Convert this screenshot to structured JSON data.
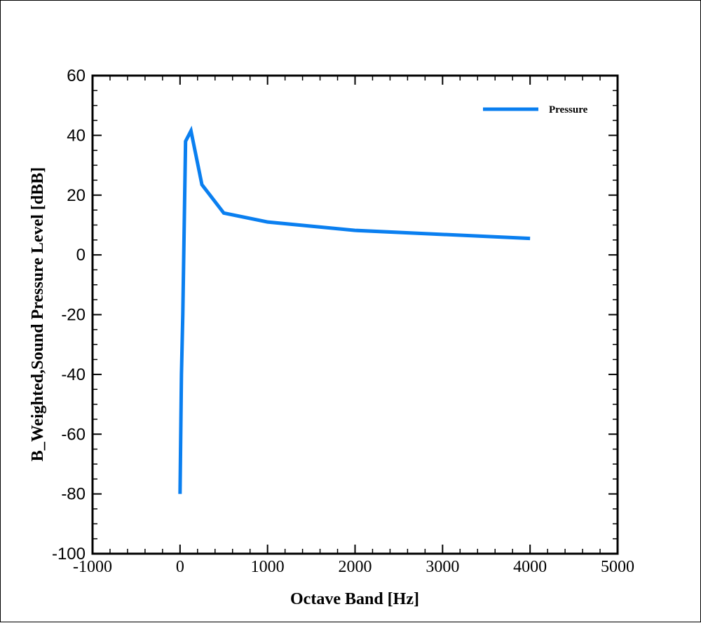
{
  "chart_data": {
    "type": "line",
    "xlabel": "Octave Band [Hz]",
    "ylabel": "B_Weighted,Sound Pressure Level [dBB]",
    "xlim": [
      -1000,
      5000
    ],
    "ylim": [
      -100,
      60
    ],
    "xticks": [
      "-1000",
      "0",
      "1000",
      "2000",
      "3000",
      "4000",
      "5000"
    ],
    "yticks": [
      "60",
      "40",
      "20",
      "0",
      "-20",
      "-40",
      "-60",
      "-80",
      "-100"
    ],
    "x_tick_values": [
      -1000,
      0,
      1000,
      2000,
      3000,
      4000,
      5000
    ],
    "y_tick_values": [
      60,
      40,
      20,
      0,
      -20,
      -40,
      -60,
      -80,
      -100
    ],
    "legend_position": "top-right",
    "grid": false,
    "series": [
      {
        "name": "Pressure",
        "color": "#0a7ff0",
        "x": [
          0,
          8,
          16,
          31.5,
          63,
          125,
          250,
          500,
          1000,
          2000,
          4000
        ],
        "y": [
          -80,
          -60,
          -40,
          -20,
          38,
          41.5,
          23.5,
          14,
          11,
          8.2,
          5.5
        ]
      }
    ]
  }
}
